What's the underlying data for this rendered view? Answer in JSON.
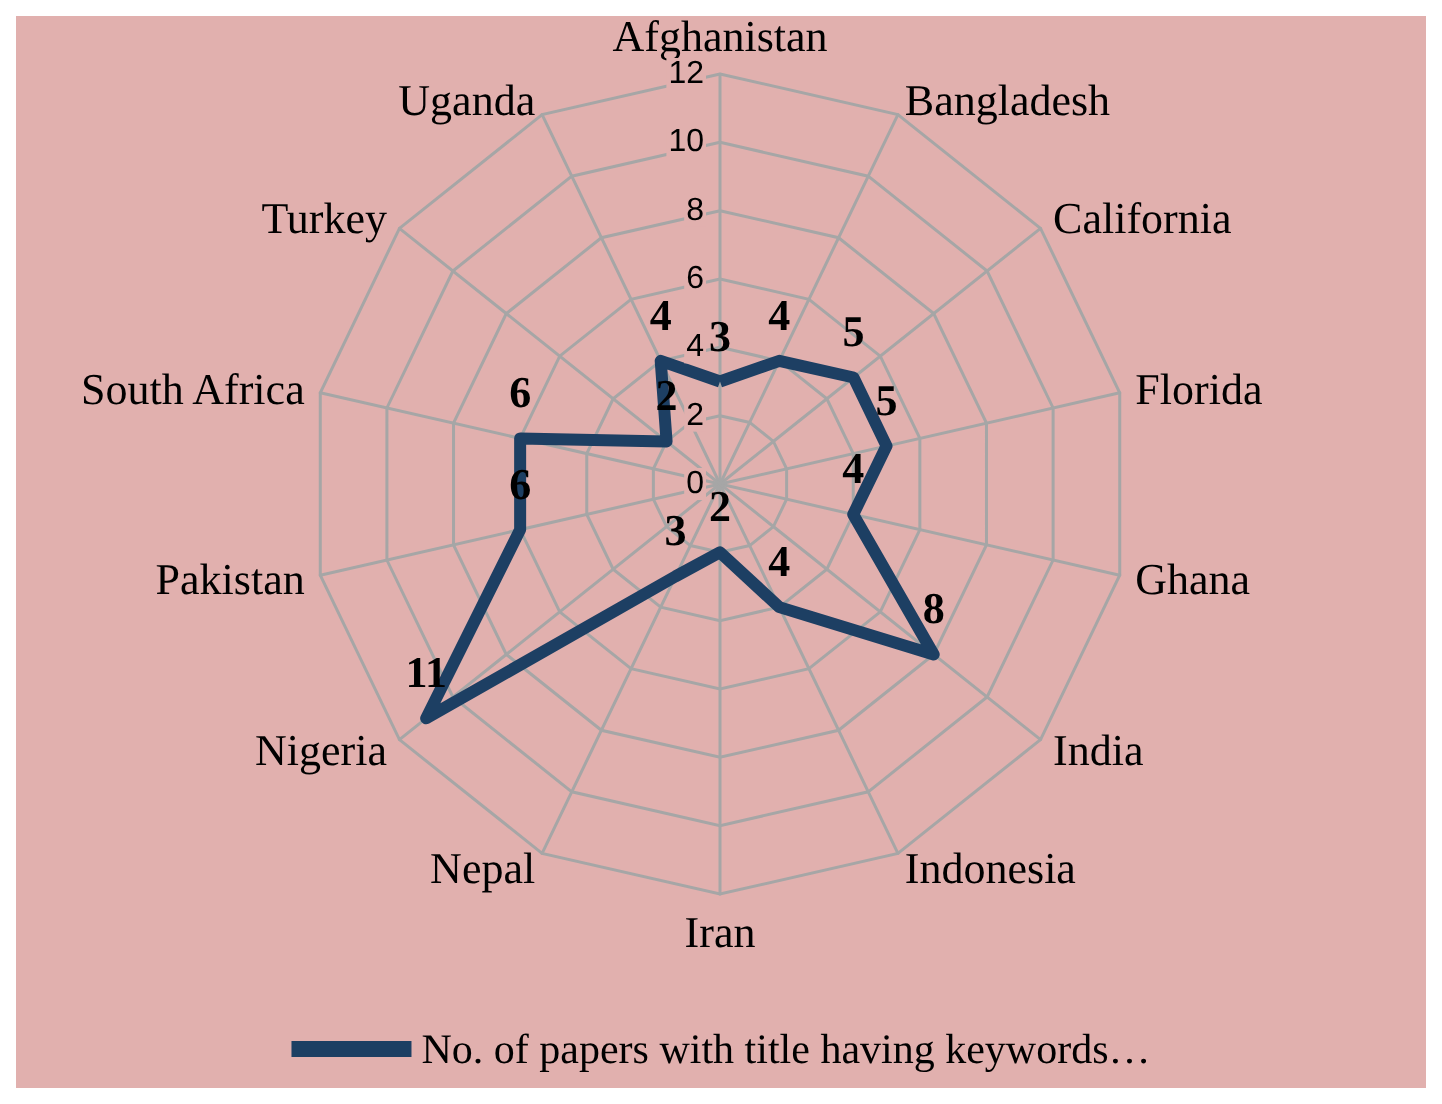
{
  "chart_data": {
    "type": "radar",
    "categories": [
      "Afghanistan",
      "Bangladesh",
      "California",
      "Florida",
      "Ghana",
      "India",
      "Indonesia",
      "Iran",
      "Nepal",
      "Nigeria",
      "Pakistan",
      "South Africa",
      "Turkey",
      "Uganda"
    ],
    "series": [
      {
        "name": "No. of papers with title having keywords…",
        "color": "#1d3f63",
        "values": [
          3,
          4,
          5,
          5,
          4,
          8,
          4,
          2,
          3,
          11,
          6,
          6,
          2,
          4
        ]
      }
    ],
    "ylim": [
      0,
      12
    ],
    "yticks": [
      0,
      2,
      4,
      6,
      8,
      10,
      12
    ],
    "data_labels": true,
    "legend": "bottom",
    "marker": "none"
  }
}
